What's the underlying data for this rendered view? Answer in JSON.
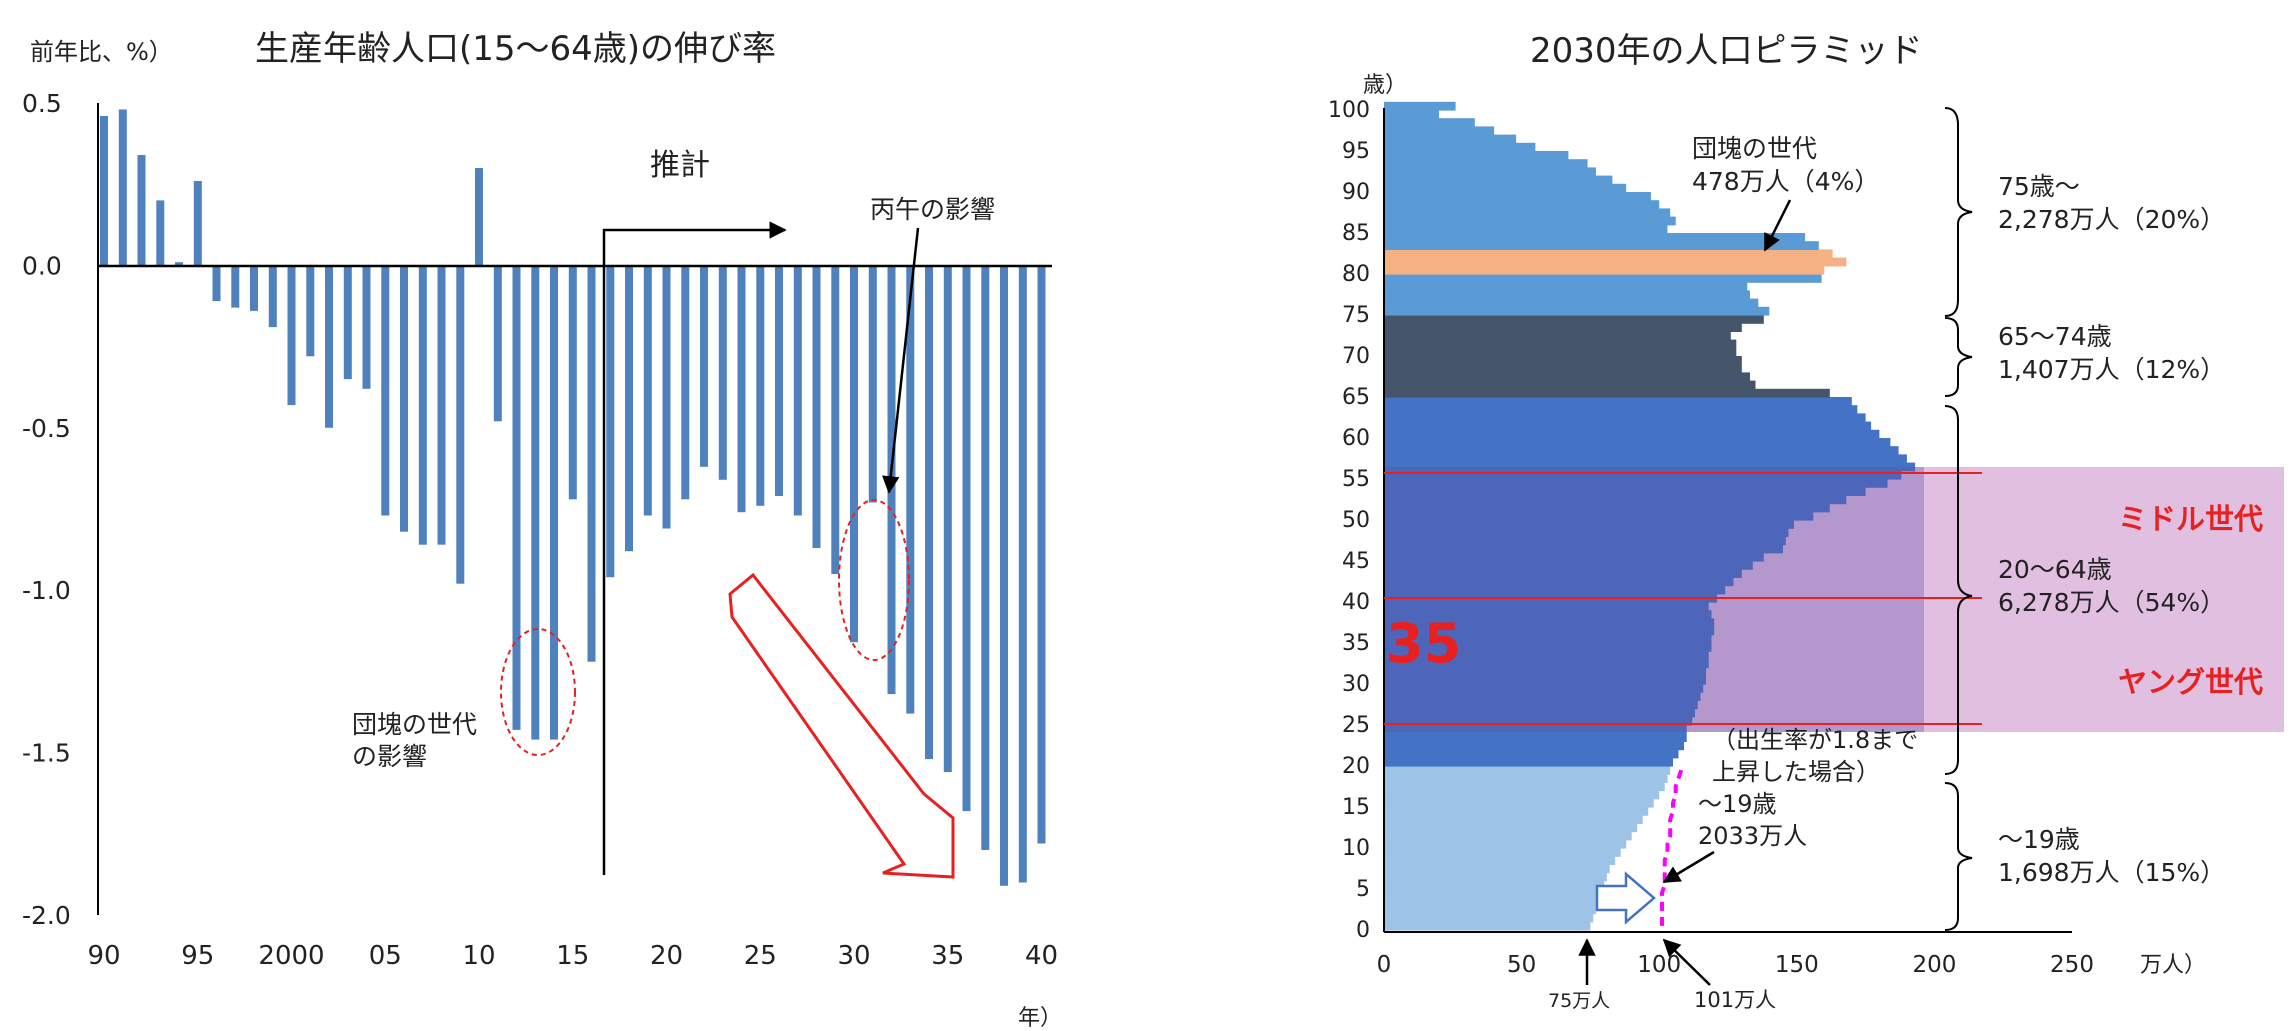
{
  "left_chart": {
    "title": "生産年齢人口(15〜64歳)の伸び率",
    "ylabel": "前年比、%）",
    "xlabel": "年）",
    "estimate_label": "推計",
    "annotation_dankai_line1": "団塊の世代",
    "annotation_dankai_line2": "の影響",
    "annotation_hinoeuma": "丙午の影響",
    "bar_color": "#4f81bd",
    "arrow_color": "#e82020"
  },
  "right_chart": {
    "title": "2030年の人口ピラミッド",
    "ylabel": "歳）",
    "xlabel": "万人）",
    "ann_dankai_line1": "団塊の世代",
    "ann_dankai_line2": "478万人（4%）",
    "ann_75_line1": "75歳〜",
    "ann_75_line2": "2,278万人（20%）",
    "ann_65_line1": "65〜74歳",
    "ann_65_line2": "1,407万人（12%）",
    "ann_20_line1": "20〜64歳",
    "ann_20_line2": "6,278万人（54%）",
    "ann_0_line1": "〜19歳",
    "ann_0_line2": "1,698万人（15%）",
    "ann_scenario_line1": "（出生率が1.8まで",
    "ann_scenario_line2": "上昇した場合）",
    "ann_scenario_line3": "〜19歳",
    "ann_scenario_line4": "2033万人",
    "marker_75": "75万人",
    "marker_101": "101万人",
    "middle_gen": "ミドル世代",
    "young_gen": "ヤング世代",
    "age_highlight": "35",
    "colors": {
      "age75plus": "#5b9bd5",
      "dankai": "#f4b183",
      "age65_74": "#44546a",
      "age20_64": "#4472c4",
      "highlight_overlay": "#dab4dc",
      "age0_19": "#9dc3e6",
      "scenario_line": "#ff00ff",
      "red": "#e82020"
    }
  },
  "chart_data": [
    {
      "type": "bar",
      "title": "生産年齢人口(15〜64歳)の伸び率",
      "xlabel": "年）",
      "ylabel": "前年比、%）",
      "ylim": [
        -2.0,
        0.5
      ],
      "yticks": [
        "0.5",
        "0.0",
        "-0.5",
        "-1.0",
        "-1.5",
        "-2.0"
      ],
      "xtick_labels": [
        "90",
        "95",
        "2000",
        "05",
        "10",
        "15",
        "20",
        "25",
        "30",
        "35",
        "40"
      ],
      "categories": [
        1990,
        1991,
        1992,
        1993,
        1994,
        1995,
        1996,
        1997,
        1998,
        1999,
        2000,
        2001,
        2002,
        2003,
        2004,
        2005,
        2006,
        2007,
        2008,
        2009,
        2010,
        2011,
        2012,
        2013,
        2014,
        2015,
        2016,
        2017,
        2018,
        2019,
        2020,
        2021,
        2022,
        2023,
        2024,
        2025,
        2026,
        2027,
        2028,
        2029,
        2030,
        2031,
        2032,
        2033,
        2034,
        2035,
        2036,
        2037,
        2038,
        2039,
        2040
      ],
      "values": [
        0.46,
        0.48,
        0.34,
        0.2,
        0.01,
        0.26,
        -0.11,
        -0.13,
        -0.14,
        -0.19,
        -0.43,
        -0.28,
        -0.5,
        -0.35,
        -0.38,
        -0.77,
        -0.82,
        -0.86,
        -0.86,
        -0.98,
        0.3,
        -0.48,
        -1.43,
        -1.46,
        -1.46,
        -0.72,
        -1.22,
        -0.96,
        -0.88,
        -0.77,
        -0.81,
        -0.72,
        -0.62,
        -0.66,
        -0.76,
        -0.74,
        -0.71,
        -0.77,
        -0.87,
        -0.95,
        -1.16,
        -0.73,
        -1.32,
        -1.38,
        -1.52,
        -1.56,
        -1.68,
        -1.8,
        -1.91,
        -1.9,
        -1.78
      ]
    },
    {
      "type": "bar",
      "title": "2030年の人口ピラミッド",
      "xlabel": "万人）",
      "ylabel": "歳）",
      "orientation": "horizontal",
      "xlim": [
        0,
        250
      ],
      "ylim": [
        0,
        100
      ],
      "xtick_labels": [
        "0",
        "50",
        "100",
        "150",
        "200",
        "250"
      ],
      "ytick_labels": [
        "0",
        "5",
        "10",
        "15",
        "20",
        "25",
        "30",
        "35",
        "40",
        "45",
        "50",
        "55",
        "60",
        "65",
        "70",
        "75",
        "80",
        "85",
        "90",
        "95",
        "100"
      ],
      "ages": [
        0,
        1,
        2,
        3,
        4,
        5,
        6,
        7,
        8,
        9,
        10,
        11,
        12,
        13,
        14,
        15,
        16,
        17,
        18,
        19,
        20,
        21,
        22,
        23,
        24,
        25,
        26,
        27,
        28,
        29,
        30,
        31,
        32,
        33,
        34,
        35,
        36,
        37,
        38,
        39,
        40,
        41,
        42,
        43,
        44,
        45,
        46,
        47,
        48,
        49,
        50,
        51,
        52,
        53,
        54,
        55,
        56,
        57,
        58,
        59,
        60,
        61,
        62,
        63,
        64,
        65,
        66,
        67,
        68,
        69,
        70,
        71,
        72,
        73,
        74,
        75,
        76,
        77,
        78,
        79,
        80,
        81,
        82,
        83,
        84,
        85,
        86,
        87,
        88,
        89,
        90,
        91,
        92,
        93,
        94,
        95,
        96,
        97,
        98,
        99,
        100
      ],
      "values": [
        75,
        76,
        77,
        78,
        79,
        80,
        81,
        82,
        84,
        86,
        88,
        90,
        92,
        94,
        96,
        98,
        100,
        102,
        103,
        104,
        105,
        107,
        109,
        110,
        110,
        112,
        113,
        114,
        115,
        116,
        117,
        117,
        118,
        118,
        119,
        119,
        120,
        120,
        119,
        118,
        121,
        124,
        127,
        130,
        134,
        138,
        145,
        146,
        147,
        149,
        156,
        162,
        168,
        175,
        183,
        188,
        193,
        190,
        187,
        184,
        180,
        177,
        175,
        172,
        170,
        162,
        135,
        133,
        130,
        130,
        128,
        128,
        126,
        130,
        138,
        140,
        136,
        133,
        132,
        159,
        160,
        168,
        163,
        158,
        153,
        103,
        106,
        104,
        100,
        97,
        88,
        83,
        77,
        74,
        67,
        55,
        48,
        40,
        33,
        20,
        26
      ],
      "scenario_label": "出生率が1.8まで上昇した場合",
      "scenario_0_19_total": "2033万人",
      "scenario_values": [
        101,
        101,
        101,
        101,
        101,
        102,
        102,
        102,
        102,
        103,
        103,
        104,
        104,
        104,
        105,
        105,
        106,
        106,
        107,
        108
      ]
    }
  ]
}
